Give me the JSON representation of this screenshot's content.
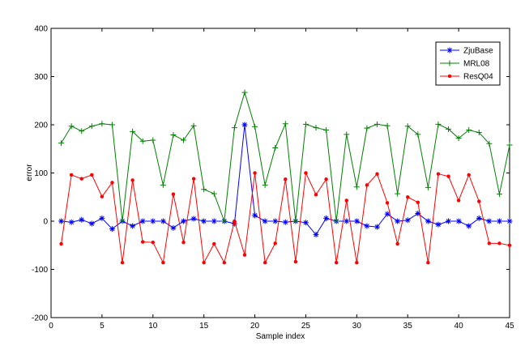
{
  "chart_data": {
    "type": "line",
    "title": "",
    "xlabel": "Sample index",
    "ylabel": "error",
    "xlim": [
      0,
      45
    ],
    "ylim": [
      -200,
      400
    ],
    "xticks": [
      0,
      5,
      10,
      15,
      20,
      25,
      30,
      35,
      40,
      45
    ],
    "yticks": [
      -200,
      -100,
      0,
      100,
      200,
      300,
      400
    ],
    "grid": false,
    "legend_position": "top-right",
    "x": [
      1,
      2,
      3,
      4,
      5,
      6,
      7,
      8,
      9,
      10,
      11,
      12,
      13,
      14,
      15,
      16,
      17,
      18,
      19,
      20,
      21,
      22,
      23,
      24,
      25,
      26,
      27,
      28,
      29,
      30,
      31,
      32,
      33,
      34,
      35,
      36,
      37,
      38,
      39,
      40,
      41,
      42,
      43,
      44,
      45
    ],
    "series": [
      {
        "name": "ZjuBase",
        "color": "#0000ff",
        "marker": "star",
        "values": [
          0,
          -2,
          3,
          -5,
          6,
          -16,
          0,
          -10,
          0,
          0,
          0,
          -14,
          0,
          5,
          0,
          0,
          0,
          -5,
          200,
          12,
          0,
          0,
          -2,
          0,
          -3,
          -28,
          6,
          0,
          0,
          0,
          -10,
          -12,
          15,
          0,
          2,
          16,
          0,
          -7,
          0,
          0,
          -10,
          6,
          0,
          0,
          0
        ]
      },
      {
        "name": "MRL08",
        "color": "#008000",
        "marker": "plus",
        "values": [
          162,
          197,
          187,
          197,
          202,
          200,
          0,
          186,
          166,
          168,
          75,
          179,
          168,
          198,
          66,
          57,
          0,
          194,
          267,
          196,
          75,
          152,
          202,
          0,
          201,
          194,
          189,
          0,
          180,
          71,
          193,
          201,
          198,
          57,
          197,
          180,
          70,
          201,
          191,
          172,
          189,
          184,
          161,
          56,
          158
        ]
      },
      {
        "name": "ResQ04",
        "color": "#ff0000",
        "marker": "dot",
        "values": [
          -47,
          96,
          88,
          96,
          51,
          80,
          -86,
          85,
          -43,
          -44,
          -86,
          56,
          -44,
          88,
          -86,
          -47,
          -86,
          0,
          -70,
          100,
          -86,
          -46,
          87,
          -84,
          100,
          55,
          87,
          -86,
          43,
          -86,
          75,
          98,
          38,
          -47,
          50,
          39,
          -86,
          98,
          93,
          43,
          96,
          41,
          -46,
          -46,
          -50
        ]
      }
    ]
  }
}
